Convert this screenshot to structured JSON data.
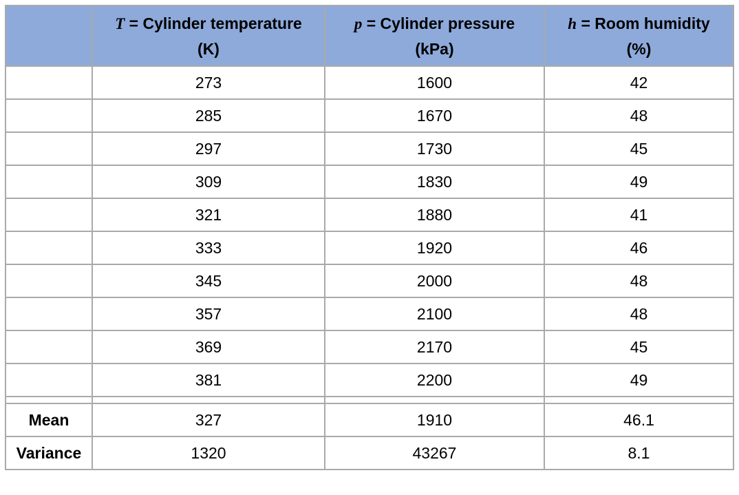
{
  "table": {
    "headers": [
      {
        "var": "",
        "name": "",
        "unit": ""
      },
      {
        "var": "T",
        "name": " = Cylinder temperature",
        "unit": "(K)"
      },
      {
        "var": "p",
        "name": " = Cylinder pressure",
        "unit": "(kPa)"
      },
      {
        "var": "h",
        "name": " = Room humidity",
        "unit": "(%)"
      }
    ],
    "rows": [
      [
        "273",
        "1600",
        "42"
      ],
      [
        "285",
        "1670",
        "48"
      ],
      [
        "297",
        "1730",
        "45"
      ],
      [
        "309",
        "1830",
        "49"
      ],
      [
        "321",
        "1880",
        "41"
      ],
      [
        "333",
        "1920",
        "46"
      ],
      [
        "345",
        "2000",
        "48"
      ],
      [
        "357",
        "2100",
        "48"
      ],
      [
        "369",
        "2170",
        "45"
      ],
      [
        "381",
        "2200",
        "49"
      ]
    ],
    "stats": [
      {
        "label": "Mean",
        "values": [
          "327",
          "1910",
          "46.1"
        ]
      },
      {
        "label": "Variance",
        "values": [
          "1320",
          "43267",
          "8.1"
        ]
      }
    ]
  }
}
